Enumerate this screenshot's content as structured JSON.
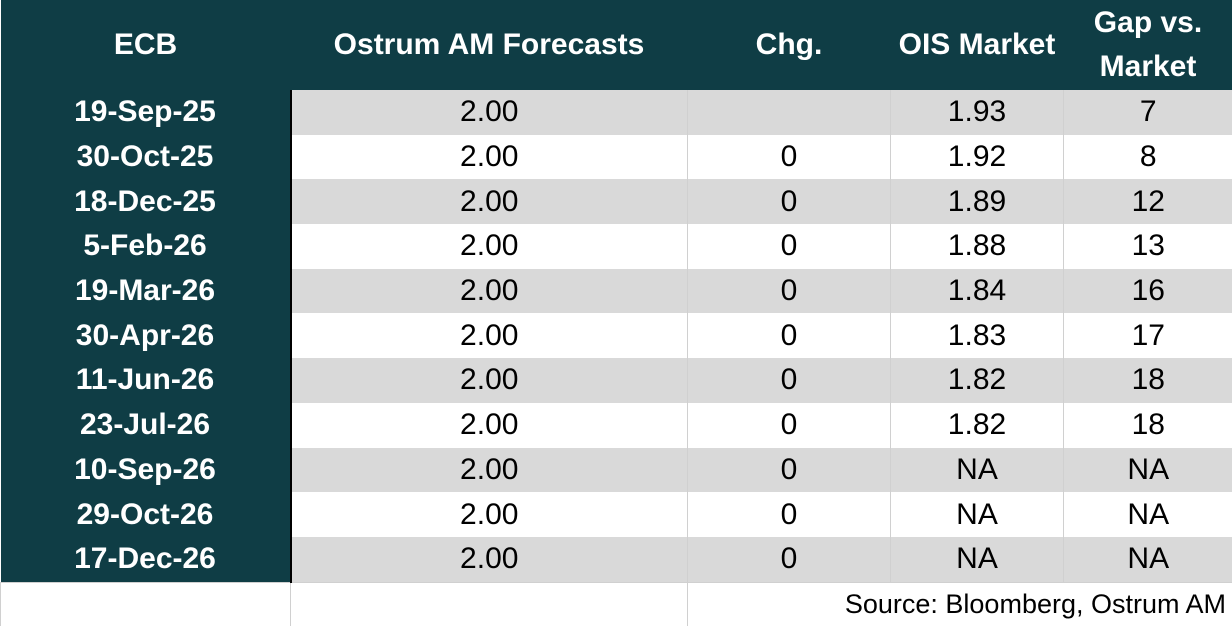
{
  "table": {
    "headers": [
      "ECB",
      "Ostrum AM Forecasts",
      "Chg.",
      "OIS Market",
      "Gap vs. Market"
    ],
    "rows": [
      [
        "19-Sep-25",
        "2.00",
        null,
        "1.93",
        "7"
      ],
      [
        "30-Oct-25",
        "2.00",
        "0",
        "1.92",
        "8"
      ],
      [
        "18-Dec-25",
        "2.00",
        "0",
        "1.89",
        "12"
      ],
      [
        "5-Feb-26",
        "2.00",
        "0",
        "1.88",
        "13"
      ],
      [
        "19-Mar-26",
        "2.00",
        "0",
        "1.84",
        "16"
      ],
      [
        "30-Apr-26",
        "2.00",
        "0",
        "1.83",
        "17"
      ],
      [
        "11-Jun-26",
        "2.00",
        "0",
        "1.82",
        "18"
      ],
      [
        "23-Jul-26",
        "2.00",
        "0",
        "1.82",
        "18"
      ],
      [
        "10-Sep-26",
        "2.00",
        "0",
        "NA",
        "NA"
      ],
      [
        "29-Oct-26",
        "2.00",
        "0",
        "NA",
        "NA"
      ],
      [
        "17-Dec-26",
        "2.00",
        "0",
        "NA",
        "NA"
      ]
    ],
    "source": "Source: Bloomberg, Ostrum AM"
  }
}
